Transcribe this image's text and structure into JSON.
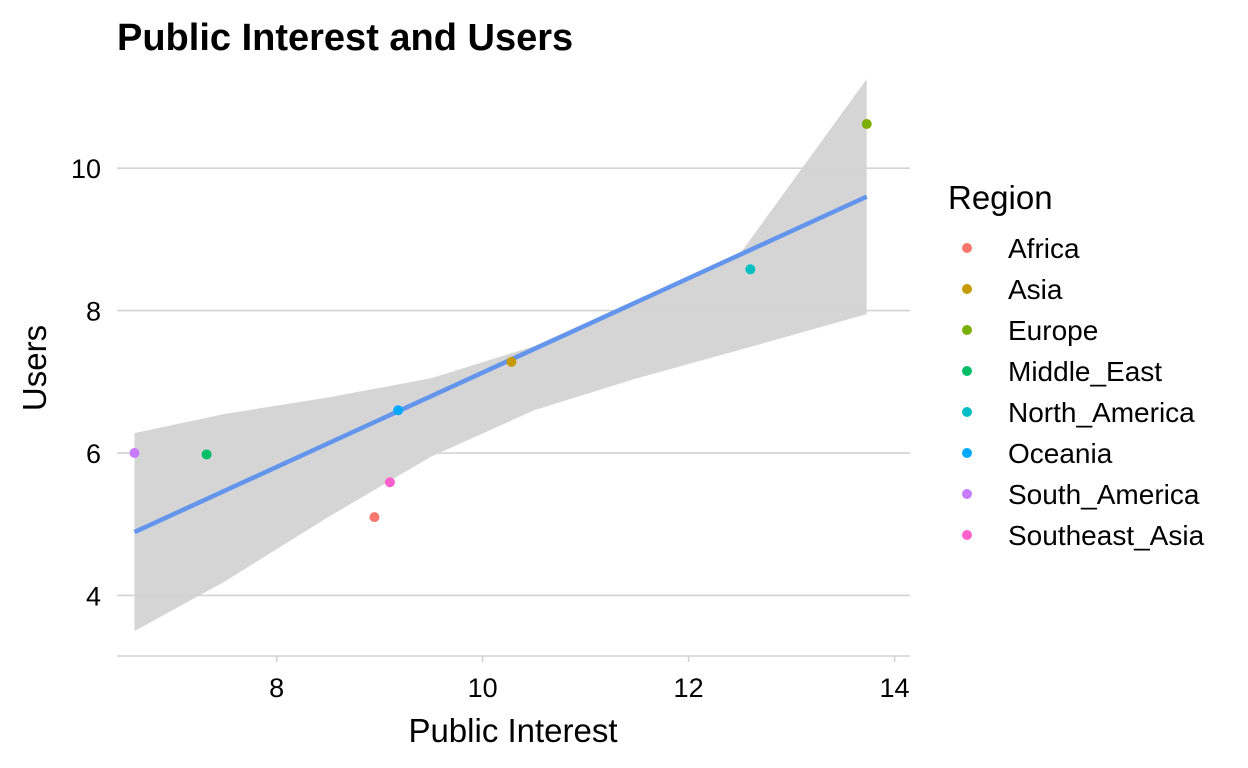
{
  "chart_data": {
    "type": "scatter",
    "title": "Public Interest and Users",
    "xlabel": "Public Interest",
    "ylabel": "Users",
    "xlim": [
      6.45,
      14.15
    ],
    "ylim": [
      3.15,
      11.35
    ],
    "x_ticks": [
      8,
      10,
      12,
      14
    ],
    "y_ticks": [
      4,
      6,
      8,
      10
    ],
    "grid": "horizontal-major",
    "legend": {
      "title": "Region",
      "position": "right"
    },
    "series": [
      {
        "name": "Africa",
        "color": "#F8766D",
        "x": 8.95,
        "y": 5.1
      },
      {
        "name": "Asia",
        "color": "#C49A00",
        "x": 10.28,
        "y": 7.28
      },
      {
        "name": "Europe",
        "color": "#7CAE00",
        "x": 13.73,
        "y": 10.62
      },
      {
        "name": "Middle_East",
        "color": "#00BE67",
        "x": 7.32,
        "y": 5.98
      },
      {
        "name": "North_America",
        "color": "#00BFC4",
        "x": 12.6,
        "y": 8.58
      },
      {
        "name": "Oceania",
        "color": "#00A9FF",
        "x": 9.18,
        "y": 6.6
      },
      {
        "name": "South_America",
        "color": "#C77CFF",
        "x": 6.62,
        "y": 6.0
      },
      {
        "name": "Southeast_Asia",
        "color": "#FF61CC",
        "x": 9.1,
        "y": 5.59
      }
    ],
    "smooth": {
      "method": "lm",
      "color": "#6495ED",
      "band_color": "#d3d3d3",
      "x": [
        6.62,
        7.5,
        8.5,
        9.5,
        10.5,
        11.5,
        12.5,
        13.73
      ],
      "fit": [
        4.89,
        5.37,
        5.92,
        6.47,
        7.02,
        7.57,
        8.12,
        9.6
      ],
      "lower": [
        3.5,
        4.2,
        5.1,
        5.95,
        6.6,
        7.05,
        7.45,
        7.95
      ],
      "upper": [
        6.28,
        6.55,
        6.78,
        7.05,
        7.5,
        8.15,
        8.8,
        11.25
      ]
    }
  }
}
